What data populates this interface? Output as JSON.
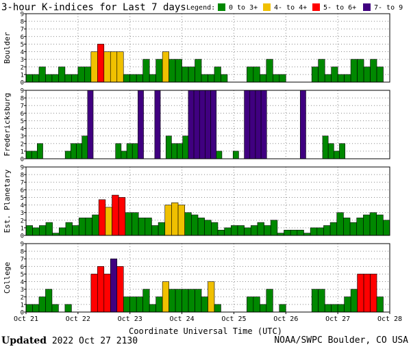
{
  "title": "3-hour K-indices for Last 7 days",
  "legend": {
    "label": "Legend:",
    "items": [
      {
        "text": "0 to 3+",
        "color": "#008800"
      },
      {
        "text": "4- to 4+",
        "color": "#f0c000"
      },
      {
        "text": "5- to 6+",
        "color": "#ff0000"
      },
      {
        "text": "7- to 9",
        "color": "#400080"
      }
    ]
  },
  "xlabel": "Coordinate Universal Time (UTC)",
  "footer": {
    "updated_label": "Updated",
    "updated_value": "2022 Oct 27 2130",
    "credit": "NOAA/SWPC Boulder, CO USA"
  },
  "chart_data": [
    {
      "type": "bar",
      "title": "Boulder",
      "ylim": [
        0,
        9
      ],
      "yticks": [
        "0",
        "1",
        "2",
        "3",
        "4",
        "5",
        "6",
        "7",
        "8",
        "9"
      ],
      "xticks": [
        "Oct 21",
        "Oct 22",
        "Oct 23",
        "Oct 24",
        "Oct 25",
        "Oct 26",
        "Oct 27",
        "Oct 28"
      ],
      "grid": true,
      "values": [
        1,
        1,
        2,
        1,
        1,
        2,
        1,
        1,
        2,
        2,
        4,
        5,
        4,
        4,
        4,
        1,
        1,
        1,
        3,
        1,
        3,
        4,
        3,
        3,
        2,
        2,
        3,
        1,
        1,
        2,
        1,
        0,
        0,
        0,
        2,
        2,
        1,
        3,
        1,
        1,
        0,
        0,
        0,
        0,
        2,
        3,
        1,
        2,
        1,
        1,
        3,
        3,
        2,
        3,
        2,
        0
      ]
    },
    {
      "type": "bar",
      "title": "Fredericksburg",
      "ylim": [
        0,
        9
      ],
      "yticks": [
        "0",
        "1",
        "2",
        "3",
        "4",
        "5",
        "6",
        "7",
        "8",
        "9"
      ],
      "xticks": [
        "Oct 21",
        "Oct 22",
        "Oct 23",
        "Oct 24",
        "Oct 25",
        "Oct 26",
        "Oct 27",
        "Oct 28"
      ],
      "grid": true,
      "values": [
        1,
        1,
        2,
        0,
        0,
        0,
        0,
        1,
        2,
        2,
        3,
        9,
        0,
        0,
        0,
        0,
        2,
        1,
        2,
        2,
        9,
        0,
        0,
        9,
        0,
        3,
        2,
        2,
        3,
        9,
        9,
        9,
        9,
        9,
        1,
        0,
        0,
        1,
        0,
        9,
        9,
        9,
        9,
        0,
        0,
        0,
        0,
        0,
        0,
        9,
        0,
        0,
        0,
        3,
        2,
        1,
        2,
        0,
        0,
        0,
        0,
        0,
        0,
        0,
        0
      ]
    },
    {
      "type": "bar",
      "title": "Est. Planetary",
      "ylim": [
        0,
        9
      ],
      "yticks": [
        "0",
        "1",
        "2",
        "3",
        "4",
        "5",
        "6",
        "7",
        "8",
        "9"
      ],
      "xticks": [
        "Oct 21",
        "Oct 22",
        "Oct 23",
        "Oct 24",
        "Oct 25",
        "Oct 26",
        "Oct 27",
        "Oct 28"
      ],
      "grid": true,
      "values": [
        1.3,
        1.0,
        1.3,
        1.7,
        0.3,
        1.0,
        1.7,
        1.3,
        2.3,
        2.3,
        2.7,
        4.7,
        3.7,
        5.3,
        5.0,
        3.0,
        3.0,
        2.3,
        2.3,
        1.3,
        1.7,
        4.0,
        4.3,
        4.0,
        3.0,
        2.7,
        2.3,
        2.0,
        1.7,
        0.7,
        1.0,
        1.3,
        1.3,
        1.0,
        1.3,
        1.7,
        1.3,
        2.0,
        0.3,
        0.7,
        0.7,
        0.7,
        0.3,
        1.0,
        1.0,
        1.3,
        1.7,
        3.0,
        2.3,
        1.7,
        2.3,
        2.7,
        3.0,
        2.7,
        2.0
      ]
    },
    {
      "type": "bar",
      "title": "College",
      "ylim": [
        0,
        9
      ],
      "yticks": [
        "0",
        "1",
        "2",
        "3",
        "4",
        "5",
        "6",
        "7",
        "8",
        "9"
      ],
      "xticks": [
        "Oct 21",
        "Oct 22",
        "Oct 23",
        "Oct 24",
        "Oct 25",
        "Oct 26",
        "Oct 27",
        "Oct 28"
      ],
      "grid": true,
      "values": [
        1,
        1,
        2,
        3,
        1,
        0,
        1,
        0,
        0,
        0,
        5,
        6,
        5,
        7,
        6,
        2,
        2,
        2,
        3,
        1,
        2,
        4,
        3,
        3,
        3,
        3,
        3,
        2,
        4,
        1,
        0,
        0,
        0,
        0,
        2,
        2,
        1,
        3,
        0,
        1,
        0,
        0,
        0,
        0,
        3,
        3,
        1,
        1,
        1,
        2,
        3,
        5,
        5,
        5,
        2,
        0
      ]
    }
  ]
}
